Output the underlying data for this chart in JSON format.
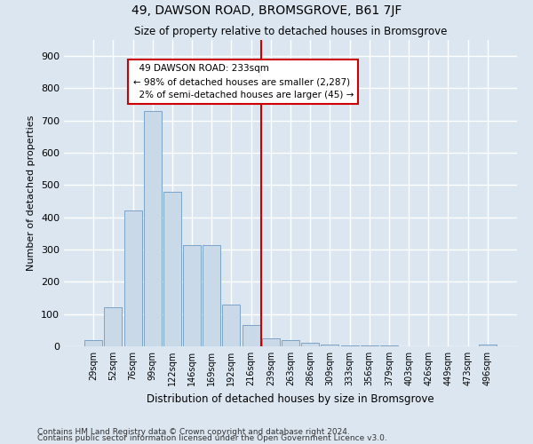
{
  "title": "49, DAWSON ROAD, BROMSGROVE, B61 7JF",
  "subtitle": "Size of property relative to detached houses in Bromsgrove",
  "xlabel": "Distribution of detached houses by size in Bromsgrove",
  "ylabel": "Number of detached properties",
  "bar_labels": [
    "29sqm",
    "52sqm",
    "76sqm",
    "99sqm",
    "122sqm",
    "146sqm",
    "169sqm",
    "192sqm",
    "216sqm",
    "239sqm",
    "263sqm",
    "286sqm",
    "309sqm",
    "333sqm",
    "356sqm",
    "379sqm",
    "403sqm",
    "426sqm",
    "449sqm",
    "473sqm",
    "496sqm"
  ],
  "bar_values": [
    18,
    120,
    420,
    730,
    480,
    315,
    315,
    130,
    65,
    25,
    20,
    10,
    5,
    3,
    2,
    2,
    1,
    1,
    0,
    0,
    5
  ],
  "bar_color": "#c9d9e8",
  "bar_edge_color": "#7ba3c8",
  "vline_x": 8.5,
  "vline_label": "49 DAWSON ROAD: 233sqm",
  "pct_smaller": "98% of detached houses are smaller (2,287)",
  "pct_larger": "2% of semi-detached houses are larger (45)",
  "annotation_box_color": "#ffffff",
  "annotation_box_edge": "#cc0000",
  "vline_color": "#cc0000",
  "bg_color": "#dce6f0",
  "fig_bg_color": "#dce6f0",
  "grid_color": "#ffffff",
  "footnote1": "Contains HM Land Registry data © Crown copyright and database right 2024.",
  "footnote2": "Contains public sector information licensed under the Open Government Licence v3.0.",
  "ylim": [
    0,
    950
  ],
  "yticks": [
    0,
    100,
    200,
    300,
    400,
    500,
    600,
    700,
    800,
    900
  ]
}
